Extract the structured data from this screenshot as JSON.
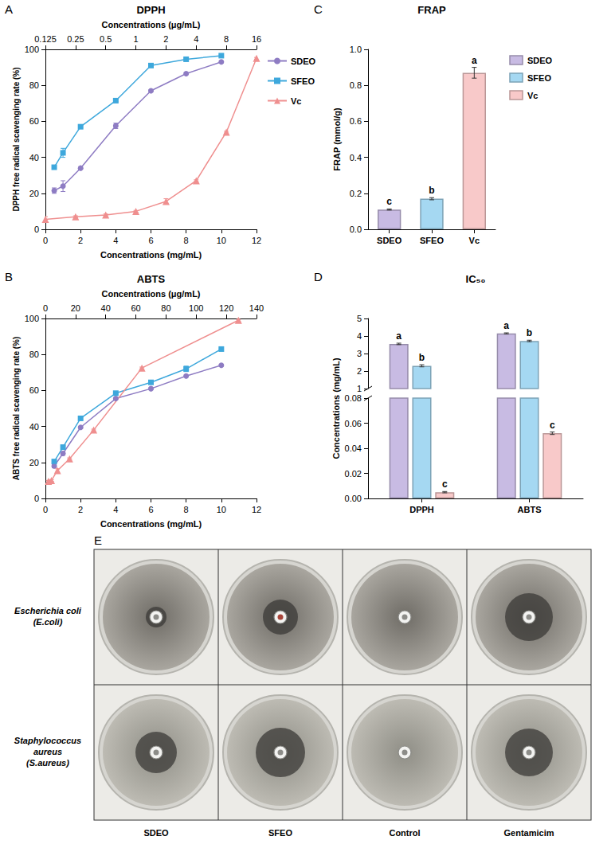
{
  "chart_data": [
    {
      "panel": "A",
      "type": "line",
      "title": "DPPH",
      "xlabel": "Concentrations (mg/mL)",
      "x2label": "Concentrations (μg/mL)",
      "ylabel": "DPPH free radical scavenging rate (%)",
      "xlim": [
        0,
        12
      ],
      "xticks": [
        0,
        2,
        4,
        6,
        8,
        10,
        12
      ],
      "x2lim": [
        0.125,
        16
      ],
      "x2ticks": [
        0.125,
        0.25,
        0.5,
        1,
        2,
        4,
        8,
        16
      ],
      "log": "x2",
      "ylim": [
        0,
        100
      ],
      "yticks": [
        0,
        20,
        40,
        60,
        80,
        100
      ],
      "grid": false,
      "legend": "right",
      "series": [
        {
          "name": "SDEO",
          "color": "#8e7cc3",
          "marker": "circle",
          "x": [
            0.5,
            1,
            2,
            4,
            6,
            8,
            10
          ],
          "values": [
            21.5,
            24,
            34,
            57.5,
            77,
            86.5,
            93
          ],
          "errors": [
            1.5,
            3,
            0.5,
            1.5,
            0.5,
            0.5,
            0.5
          ]
        },
        {
          "name": "SFEO",
          "color": "#3ea8dc",
          "marker": "square",
          "x": [
            0.5,
            1,
            2,
            4,
            6,
            8,
            10
          ],
          "values": [
            34.5,
            42.5,
            57,
            71.5,
            91,
            94.5,
            96.5
          ],
          "errors": [
            0.5,
            2.5,
            0.5,
            0.5,
            0.5,
            0.5,
            0.5
          ]
        },
        {
          "name": "Vc",
          "color": "#ef8f8f",
          "marker": "triangle",
          "axis": "x2",
          "x": [
            0.125,
            0.25,
            0.5,
            1,
            2,
            4,
            8,
            16
          ],
          "values": [
            5.5,
            7,
            8,
            10,
            15.5,
            27,
            54,
            95
          ],
          "errors": [
            1.5,
            0.5,
            0.5,
            0.5,
            1.5,
            0.5,
            0.5,
            0.5
          ]
        }
      ]
    },
    {
      "panel": "B",
      "type": "line",
      "title": "ABTS",
      "xlabel": "Concentrations (mg/mL)",
      "x2label": "Concentrations (μg/mL)",
      "ylabel": "ABTS free radical scavenging rate (%)",
      "xlim": [
        0,
        12
      ],
      "xticks": [
        0,
        2,
        4,
        6,
        8,
        10,
        12
      ],
      "x2lim": [
        0,
        140
      ],
      "x2ticks": [
        0,
        20,
        40,
        60,
        80,
        100,
        120,
        140
      ],
      "ylim": [
        0,
        100
      ],
      "yticks": [
        0,
        20,
        40,
        60,
        80,
        100
      ],
      "grid": false,
      "series": [
        {
          "name": "SDEO",
          "color": "#8e7cc3",
          "marker": "circle",
          "x": [
            0.5,
            1,
            2,
            4,
            6,
            8,
            10
          ],
          "values": [
            18,
            25,
            39.5,
            55.5,
            61,
            68,
            74
          ],
          "errors": [
            1,
            1,
            0.5,
            0.5,
            0.5,
            0.5,
            0.5
          ]
        },
        {
          "name": "SFEO",
          "color": "#3ea8dc",
          "marker": "square",
          "x": [
            0.5,
            1,
            2,
            4,
            6,
            8,
            10
          ],
          "values": [
            20.5,
            28.5,
            44.5,
            58.5,
            64.5,
            72,
            83
          ],
          "errors": [
            1,
            1,
            0.5,
            0.5,
            0.5,
            1.5,
            0.5
          ]
        },
        {
          "name": "Vc",
          "color": "#ef8f8f",
          "marker": "triangle",
          "axis": "x2",
          "x": [
            2,
            4,
            8,
            16,
            32,
            64,
            128
          ],
          "values": [
            9.5,
            10,
            15.5,
            22,
            38,
            72.5,
            99
          ],
          "errors": [
            0.5,
            0.5,
            1,
            0.5,
            0.5,
            0.5,
            0.5
          ]
        }
      ]
    },
    {
      "panel": "C",
      "type": "bar",
      "title": "FRAP",
      "ylabel": "FRAP (mmol/g)",
      "categories": [
        "SDEO",
        "SFEO",
        "Vc"
      ],
      "values": [
        0.11,
        0.17,
        0.87
      ],
      "errors": [
        0.003,
        0.006,
        0.03
      ],
      "letters": [
        "c",
        "b",
        "a"
      ],
      "colors": [
        "#c8bbe3",
        "#a5d8f2",
        "#f8c9c9"
      ],
      "ylim": [
        0,
        1
      ],
      "yticks": [
        {
          "value": 0,
          "label": "0.0"
        },
        0.2,
        0.4,
        0.6,
        0.8,
        {
          "value": 1,
          "label": "1.0"
        }
      ],
      "grid": false,
      "legend": "right"
    },
    {
      "panel": "D",
      "type": "bar",
      "title": "IC₅₀",
      "ylabel": "Concentrations (mg/mL)",
      "categories": [
        "DPPH",
        "ABTS"
      ],
      "series": [
        {
          "name": "SDEO",
          "color": "#c8bbe3",
          "values": [
            3.55,
            4.15
          ],
          "errors": [
            0.04,
            0.03
          ],
          "letters": [
            "a",
            "a"
          ]
        },
        {
          "name": "SFEO",
          "color": "#a5d8f2",
          "values": [
            2.3,
            3.72
          ],
          "errors": [
            0.06,
            0.04
          ],
          "letters": [
            "b",
            "b"
          ]
        },
        {
          "name": "Vc",
          "color": "#f8c9c9",
          "values": [
            0.005,
            0.052
          ],
          "errors": [
            0.0005,
            0.001
          ],
          "letters": [
            "c",
            "c"
          ]
        }
      ],
      "segments": [
        {
          "ylim": [
            1,
            5
          ],
          "yticks": [
            1,
            2,
            3,
            4,
            5
          ]
        },
        {
          "ylim": [
            0,
            0.08
          ],
          "yticks": [
            {
              "value": 0,
              "label": "0.00"
            },
            0.02,
            0.04,
            0.06,
            0.08
          ]
        }
      ],
      "grid": false
    }
  ],
  "image_grid": {
    "panel": "E",
    "rows": [
      "Escherichia coli (E.coli)",
      "Staphylococcus aureus (S.aureus)"
    ],
    "columns": [
      "SDEO",
      "SFEO",
      "Control",
      "Gentamicim"
    ]
  }
}
